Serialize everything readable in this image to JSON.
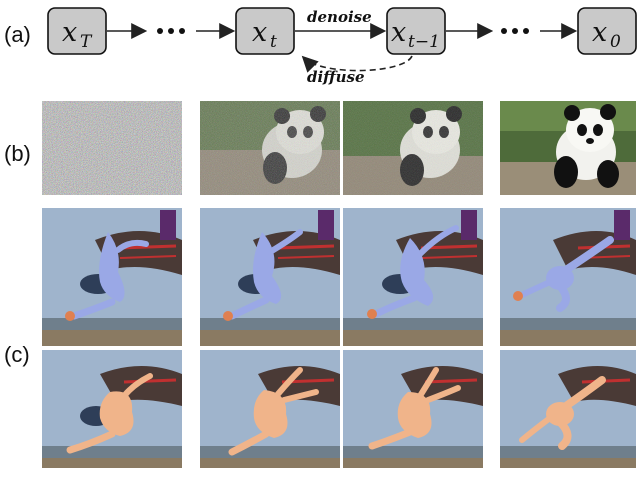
{
  "row_labels": {
    "a": "(a)",
    "b": "(b)",
    "c": "(c)"
  },
  "nodes": [
    {
      "id": "xT",
      "base": "x",
      "sub": "T"
    },
    {
      "id": "xt",
      "base": "x",
      "sub": "t"
    },
    {
      "id": "xt1",
      "base": "x",
      "sub": "t−1"
    },
    {
      "id": "x0",
      "base": "x",
      "sub": "0"
    }
  ],
  "edges": {
    "denoise": "denoise",
    "diffuse": "diffuse"
  },
  "colors": {
    "node_fill": "#c9c9c9",
    "mesh_blue": "#9aa8e6",
    "mesh_skin": "#f0b48a",
    "sky": "#9fb4cc",
    "panda_bg": "#4e6b3a"
  }
}
